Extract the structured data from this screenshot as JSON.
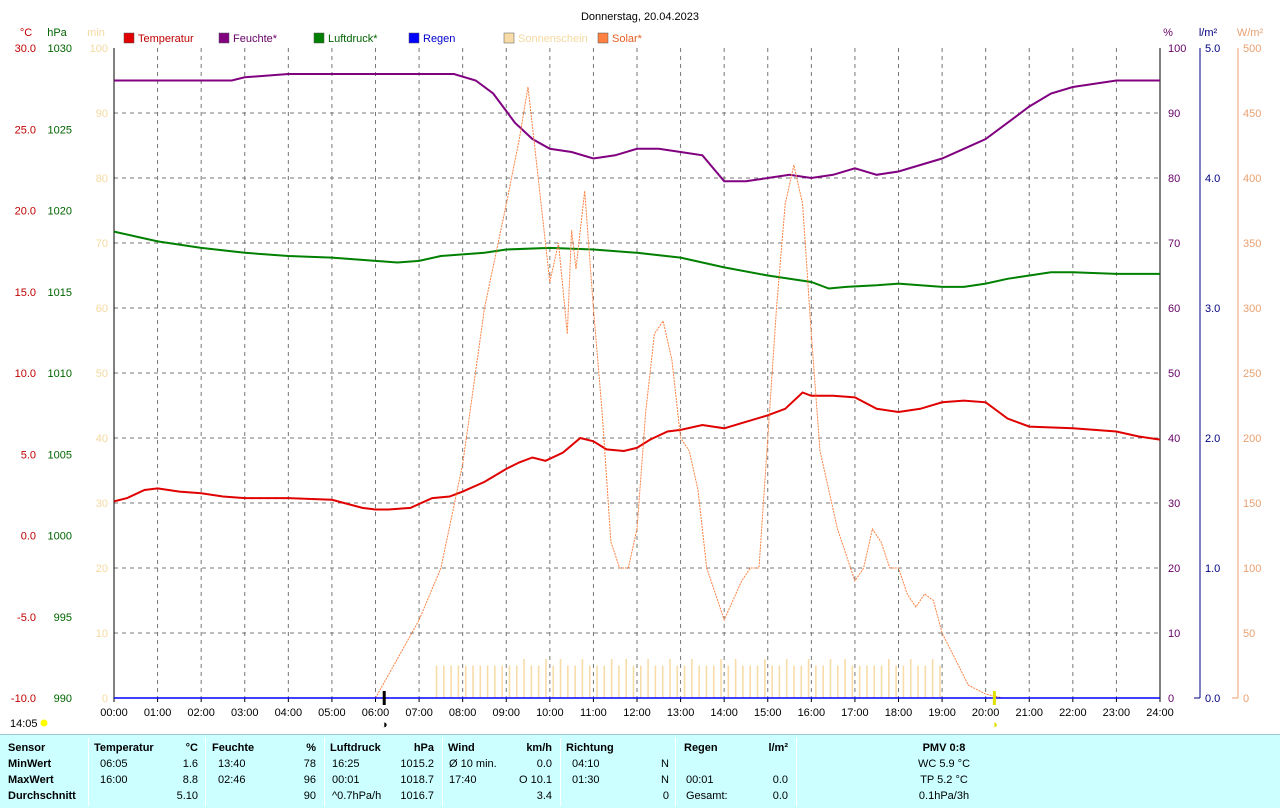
{
  "chart_data": {
    "type": "line",
    "title": "Donnerstag, 20.04.2023",
    "x_ticks": [
      "00:00",
      "01:00",
      "02:00",
      "03:00",
      "04:00",
      "05:00",
      "06:00",
      "07:00",
      "08:00",
      "09:00",
      "10:00",
      "11:00",
      "12:00",
      "13:00",
      "14:00",
      "15:00",
      "16:00",
      "17:00",
      "18:00",
      "19:00",
      "20:00",
      "21:00",
      "22:00",
      "23:00",
      "24:00"
    ],
    "axes": {
      "temp": {
        "unit": "°C",
        "range": [
          -10,
          30
        ],
        "ticks": [
          "30.0",
          "25.0",
          "20.0",
          "15.0",
          "10.0",
          "5.0",
          "0.0",
          "-5.0",
          "-10.0"
        ],
        "color": "#c00000"
      },
      "press": {
        "unit": "hPa",
        "range": [
          990,
          1030
        ],
        "ticks": [
          "1030",
          "1025",
          "1020",
          "1015",
          "1010",
          "1005",
          "1000",
          "995",
          "990"
        ],
        "color": "#006400"
      },
      "sun": {
        "unit": "min",
        "range": [
          0,
          100
        ],
        "ticks": [
          "100",
          "90",
          "80",
          "70",
          "60",
          "50",
          "40",
          "30",
          "20",
          "10",
          "0"
        ],
        "color": "#f5d9a0"
      },
      "hum": {
        "unit": "%",
        "range": [
          0,
          100
        ],
        "ticks": [
          "100",
          "90",
          "80",
          "70",
          "60",
          "50",
          "40",
          "30",
          "20",
          "10",
          "0"
        ],
        "color": "#660066"
      },
      "rain": {
        "unit": "l/m²",
        "range": [
          0,
          5
        ],
        "ticks": [
          "5.0",
          "4.0",
          "3.0",
          "2.0",
          "1.0",
          "0.0"
        ],
        "color": "#000080"
      },
      "solar": {
        "unit": "W/m²",
        "range": [
          0,
          500
        ],
        "ticks": [
          "500",
          "450",
          "400",
          "350",
          "300",
          "250",
          "200",
          "150",
          "100",
          "50",
          "0"
        ],
        "color": "#e8a070"
      }
    },
    "legend": [
      {
        "name": "Temperatur",
        "color": "#e00000",
        "text_color": "#c00000"
      },
      {
        "name": "Feuchte*",
        "color": "#800080",
        "text_color": "#660066"
      },
      {
        "name": "Luftdruck*",
        "color": "#008000",
        "text_color": "#006400"
      },
      {
        "name": "Regen",
        "color": "#0000ff",
        "text_color": "#0000cc"
      },
      {
        "name": "Sonnenschein",
        "color": "#f8dca8",
        "text_color": "#f5d9a0"
      },
      {
        "name": "Solar*",
        "color": "#ff8040",
        "text_color": "#e86020"
      }
    ],
    "series": [
      {
        "name": "Temperatur",
        "axis": "temp",
        "color": "#e00000",
        "x": [
          0,
          0.3,
          0.7,
          1,
          1.5,
          2,
          2.5,
          3,
          4,
          5,
          5.7,
          6,
          6.3,
          6.8,
          7.3,
          7.7,
          8,
          8.5,
          9,
          9.3,
          9.6,
          9.9,
          10.3,
          10.7,
          11,
          11.3,
          11.7,
          12,
          12.3,
          12.7,
          13,
          13.5,
          14,
          14.5,
          15,
          15.4,
          15.8,
          16,
          16.2,
          16.5,
          17,
          17.5,
          18,
          18.5,
          19,
          19.5,
          20,
          20.5,
          21,
          22,
          23,
          23.5,
          24
        ],
        "y": [
          2.1,
          2.3,
          2.8,
          2.9,
          2.7,
          2.6,
          2.4,
          2.3,
          2.3,
          2.2,
          1.7,
          1.6,
          1.6,
          1.7,
          2.3,
          2.4,
          2.7,
          3.3,
          4.1,
          4.5,
          4.8,
          4.6,
          5.1,
          6.0,
          5.8,
          5.3,
          5.2,
          5.4,
          5.9,
          6.4,
          6.5,
          6.8,
          6.6,
          7.0,
          7.4,
          7.8,
          8.8,
          8.6,
          8.6,
          8.6,
          8.5,
          7.8,
          7.6,
          7.8,
          8.2,
          8.3,
          8.2,
          7.2,
          6.7,
          6.6,
          6.4,
          6.1,
          5.9
        ]
      },
      {
        "name": "Feuchte*",
        "axis": "hum",
        "color": "#800080",
        "x": [
          0,
          1,
          2,
          2.7,
          3,
          4,
          5,
          6,
          7,
          7.8,
          8.3,
          8.7,
          9.2,
          9.6,
          10,
          10.5,
          11,
          11.5,
          12,
          12.5,
          13,
          13.5,
          14,
          14.5,
          15,
          15.5,
          16,
          16.5,
          17,
          17.5,
          18,
          18.5,
          19,
          19.5,
          20,
          20.5,
          21,
          21.5,
          22,
          22.5,
          23,
          23.5,
          24
        ],
        "y": [
          95,
          95,
          95,
          95,
          95.5,
          96,
          96,
          96,
          96,
          96,
          95,
          93,
          88.5,
          86,
          84.5,
          84,
          83,
          83.5,
          84.5,
          84.5,
          84,
          83.5,
          79.5,
          79.5,
          80,
          80.5,
          80,
          80.5,
          81.5,
          80.5,
          81,
          82,
          83,
          84.5,
          86,
          88.5,
          91,
          93,
          94,
          94.5,
          95,
          95,
          95
        ]
      },
      {
        "name": "Luftdruck*",
        "axis": "press",
        "color": "#008000",
        "x": [
          0,
          0.5,
          1,
          2,
          3,
          4,
          5,
          6,
          6.5,
          7,
          7.5,
          8,
          8.5,
          9,
          10,
          11,
          12,
          13,
          14,
          15,
          16,
          16.4,
          16.8,
          17.5,
          18,
          19,
          19.5,
          20,
          20.5,
          21,
          21.5,
          22,
          23,
          24
        ],
        "y": [
          1018.7,
          1018.4,
          1018.1,
          1017.7,
          1017.4,
          1017.2,
          1017.1,
          1016.9,
          1016.8,
          1016.9,
          1017.2,
          1017.3,
          1017.4,
          1017.6,
          1017.7,
          1017.6,
          1017.4,
          1017.1,
          1016.5,
          1016.0,
          1015.6,
          1015.2,
          1015.3,
          1015.4,
          1015.5,
          1015.3,
          1015.3,
          1015.5,
          1015.8,
          1016.0,
          1016.2,
          1016.2,
          1016.1,
          1016.1
        ]
      },
      {
        "name": "Solar*",
        "axis": "solar",
        "color": "#ff8040",
        "x": [
          6,
          6.5,
          7,
          7.5,
          8,
          8.5,
          9,
          9.3,
          9.5,
          9.6,
          9.8,
          10,
          10.2,
          10.4,
          10.5,
          10.6,
          10.8,
          11,
          11.2,
          11.4,
          11.6,
          11.8,
          12,
          12.2,
          12.4,
          12.6,
          12.8,
          13,
          13.2,
          13.4,
          13.6,
          13.8,
          14,
          14.2,
          14.4,
          14.6,
          14.8,
          15,
          15.2,
          15.4,
          15.6,
          15.8,
          16,
          16.2,
          16.4,
          16.6,
          16.8,
          17,
          17.2,
          17.4,
          17.6,
          17.8,
          18,
          18.2,
          18.4,
          18.6,
          18.8,
          19,
          19.3,
          19.6,
          20,
          20.4,
          20.8,
          21
        ],
        "y": [
          0,
          30,
          60,
          100,
          180,
          300,
          380,
          430,
          470,
          440,
          380,
          320,
          350,
          280,
          360,
          330,
          390,
          300,
          220,
          120,
          100,
          100,
          130,
          220,
          280,
          290,
          260,
          200,
          190,
          160,
          100,
          80,
          60,
          75,
          90,
          100,
          100,
          200,
          300,
          380,
          410,
          380,
          280,
          190,
          160,
          130,
          110,
          90,
          100,
          130,
          120,
          100,
          100,
          80,
          70,
          80,
          75,
          50,
          30,
          10,
          3,
          0,
          0,
          0
        ]
      }
    ],
    "sunshine": {
      "axis": "sun",
      "from": 7.4,
      "to": 18.95,
      "interval_min": 10,
      "y": [
        5,
        5,
        5,
        5,
        5,
        5,
        5,
        5,
        5,
        5,
        5,
        5,
        6,
        5,
        5,
        6,
        5,
        6,
        5,
        5,
        6,
        5,
        5,
        5,
        6,
        5,
        6,
        5,
        5,
        6,
        5,
        5,
        6,
        5,
        5,
        6,
        5,
        5,
        5,
        6,
        5,
        6,
        5,
        5,
        5,
        6,
        5,
        5,
        6,
        5,
        5,
        6,
        5,
        5,
        6,
        5,
        6,
        5,
        5,
        5,
        5,
        5,
        6,
        5,
        5,
        6,
        5,
        5,
        6,
        5
      ]
    },
    "rain": {
      "axis": "rain",
      "x": [
        0,
        24
      ],
      "y": [
        0,
        0
      ]
    },
    "markers": [
      {
        "label": "14:05",
        "hour": 14.0833
      },
      {
        "symbol": "◑",
        "hour": 6.2
      },
      {
        "symbol": "◑",
        "hour": 20.2
      }
    ]
  },
  "stats": {
    "sensor": {
      "title": "Sensor",
      "rows": [
        "MinWert",
        "MaxWert",
        "Durchschnitt"
      ]
    },
    "temperature": {
      "title": "Temperatur",
      "unit": "°C",
      "rows": [
        [
          "06:05",
          "1.6"
        ],
        [
          "16:00",
          "8.8"
        ],
        [
          "",
          "5.10"
        ]
      ]
    },
    "humidity": {
      "title": "Feuchte",
      "unit": "%",
      "rows": [
        [
          "13:40",
          "78"
        ],
        [
          "02:46",
          "96"
        ],
        [
          "",
          "90"
        ]
      ]
    },
    "pressure": {
      "title": "Luftdruck",
      "unit": "hPa",
      "rows": [
        [
          "16:25",
          "1015.2"
        ],
        [
          "00:01",
          "1018.7"
        ],
        [
          "^0.7hPa/h",
          "1016.7"
        ]
      ]
    },
    "wind": {
      "title": "Wind",
      "unit": "km/h",
      "rows": [
        [
          "Ø 10 min.",
          "0.0"
        ],
        [
          "17:40",
          "O 10.1"
        ],
        [
          "",
          "3.4"
        ]
      ]
    },
    "direction": {
      "title": "Richtung",
      "rows": [
        [
          "04:10",
          "N"
        ],
        [
          "01:30",
          "N"
        ],
        [
          "",
          "0"
        ]
      ]
    },
    "rain": {
      "title": "Regen",
      "unit": "l/m²",
      "rows": [
        [
          "",
          ""
        ],
        [
          "00:01",
          "0.0"
        ],
        [
          "Gesamt:",
          "0.0"
        ]
      ]
    },
    "pmv": {
      "title": "PMV 0:8",
      "rows": [
        "WC 5.9 °C",
        "TP 5.2 °C",
        "0.1hPa/3h"
      ]
    }
  }
}
